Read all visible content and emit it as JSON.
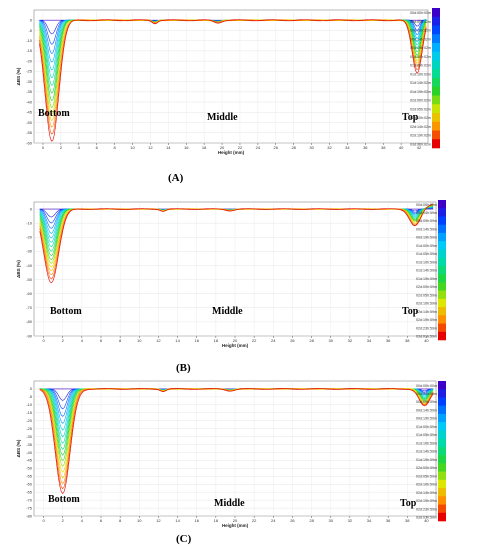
{
  "chart_data": [
    {
      "type": "line",
      "panel_label": "(A)",
      "xlabel": "Height (mm)",
      "ylabel": "ΔBS (%)",
      "xlim": [
        -1,
        43
      ],
      "ylim": [
        -60,
        5
      ],
      "xticks": [
        0,
        2,
        4,
        6,
        8,
        10,
        12,
        14,
        16,
        18,
        20,
        22,
        24,
        26,
        28,
        30,
        32,
        34,
        36,
        38,
        40,
        42
      ],
      "yticks": [
        0,
        -5,
        -10,
        -15,
        -20,
        -25,
        -30,
        -35,
        -40,
        -45,
        -50,
        -55,
        -60
      ],
      "annotations": [
        "Bottom",
        "Middle",
        "Top"
      ],
      "legend": [
        "00d:00h:00m",
        "00d:05h:02m",
        "00d:10h:02m",
        "00d:14h:02m",
        "00d:19h:02m",
        "01d:00h:02m",
        "01d:05h:02m",
        "01d:10h:02m",
        "01d:14h:02m",
        "01d:19h:02m",
        "02d:00h:02m",
        "02d:05h:02m",
        "02d:10h:02m",
        "02d:14h:02m",
        "02d:19h:02m",
        "03d:00h:02m"
      ],
      "legend_placement": "right",
      "grid": true,
      "profile": {
        "bottom_pos": 1.0,
        "bottom_depth": -59,
        "top_pos": 41.8,
        "top_depth": -26,
        "end_rise": 1.5
      }
    },
    {
      "type": "line",
      "panel_label": "(B)",
      "xlabel": "Height (mm)",
      "ylabel": "ΔBS (%)",
      "xlim": [
        -1,
        41
      ],
      "ylim": [
        -90,
        5
      ],
      "xticks": [
        0,
        2,
        4,
        6,
        8,
        10,
        12,
        14,
        16,
        18,
        20,
        22,
        24,
        26,
        28,
        30,
        32,
        34,
        36,
        38,
        40
      ],
      "yticks": [
        0,
        -10,
        -20,
        -30,
        -40,
        -50,
        -60,
        -70,
        -80,
        -90
      ],
      "annotations": [
        "Bottom",
        "Middle",
        "Top"
      ],
      "legend": [
        "00d:00h:00m",
        "00d:04h:59m",
        "00d:09h:59m",
        "00d:14h:59m",
        "00d:19h:59m",
        "01d:00h:59m",
        "01d:05h:59m",
        "01d:10h:59m",
        "01d:14h:59m",
        "01d:19h:59m",
        "02d:00h:59m",
        "02d:05h:59m",
        "02d:10h:59m",
        "02d:14h:59m",
        "02d:19h:59m",
        "02d:23h:59m",
        "03d:01h:59m"
      ],
      "legend_placement": "right",
      "grid": true,
      "profile": {
        "bottom_pos": 0.8,
        "bottom_depth": -52,
        "top_pos": 38.8,
        "top_depth": -12,
        "end_rise": 4
      }
    },
    {
      "type": "line",
      "panel_label": "(C)",
      "xlabel": "Height (mm)",
      "ylabel": "ΔBS (%)",
      "xlim": [
        -1,
        41
      ],
      "ylim": [
        -80,
        5
      ],
      "xticks": [
        0,
        2,
        4,
        6,
        8,
        10,
        12,
        14,
        16,
        18,
        20,
        22,
        24,
        26,
        28,
        30,
        32,
        34,
        36,
        38,
        40
      ],
      "yticks": [
        0,
        -5,
        -10,
        -15,
        -20,
        -25,
        -30,
        -35,
        -40,
        -45,
        -50,
        -55,
        -60,
        -65,
        -70,
        -75,
        -80
      ],
      "annotations": [
        "Bottom",
        "Middle",
        "Top"
      ],
      "legend": [
        "00d:00h:00m",
        "00d:04h:59m",
        "00d:09h:59m",
        "00d:14h:59m",
        "00d:19h:59m",
        "01d:00h:59m",
        "01d:05h:59m",
        "01d:10h:59m",
        "01d:14h:59m",
        "01d:19h:59m",
        "02d:00h:59m",
        "02d:05h:59m",
        "02d:10h:59m",
        "02d:14h:59m",
        "02d:19h:59m",
        "02d:23h:59m",
        "03d:01h:59m"
      ],
      "legend_placement": "right",
      "grid": true,
      "profile": {
        "bottom_pos": 2.0,
        "bottom_depth": -66,
        "top_pos": 39.8,
        "top_depth": -11,
        "end_rise": 0
      }
    }
  ]
}
